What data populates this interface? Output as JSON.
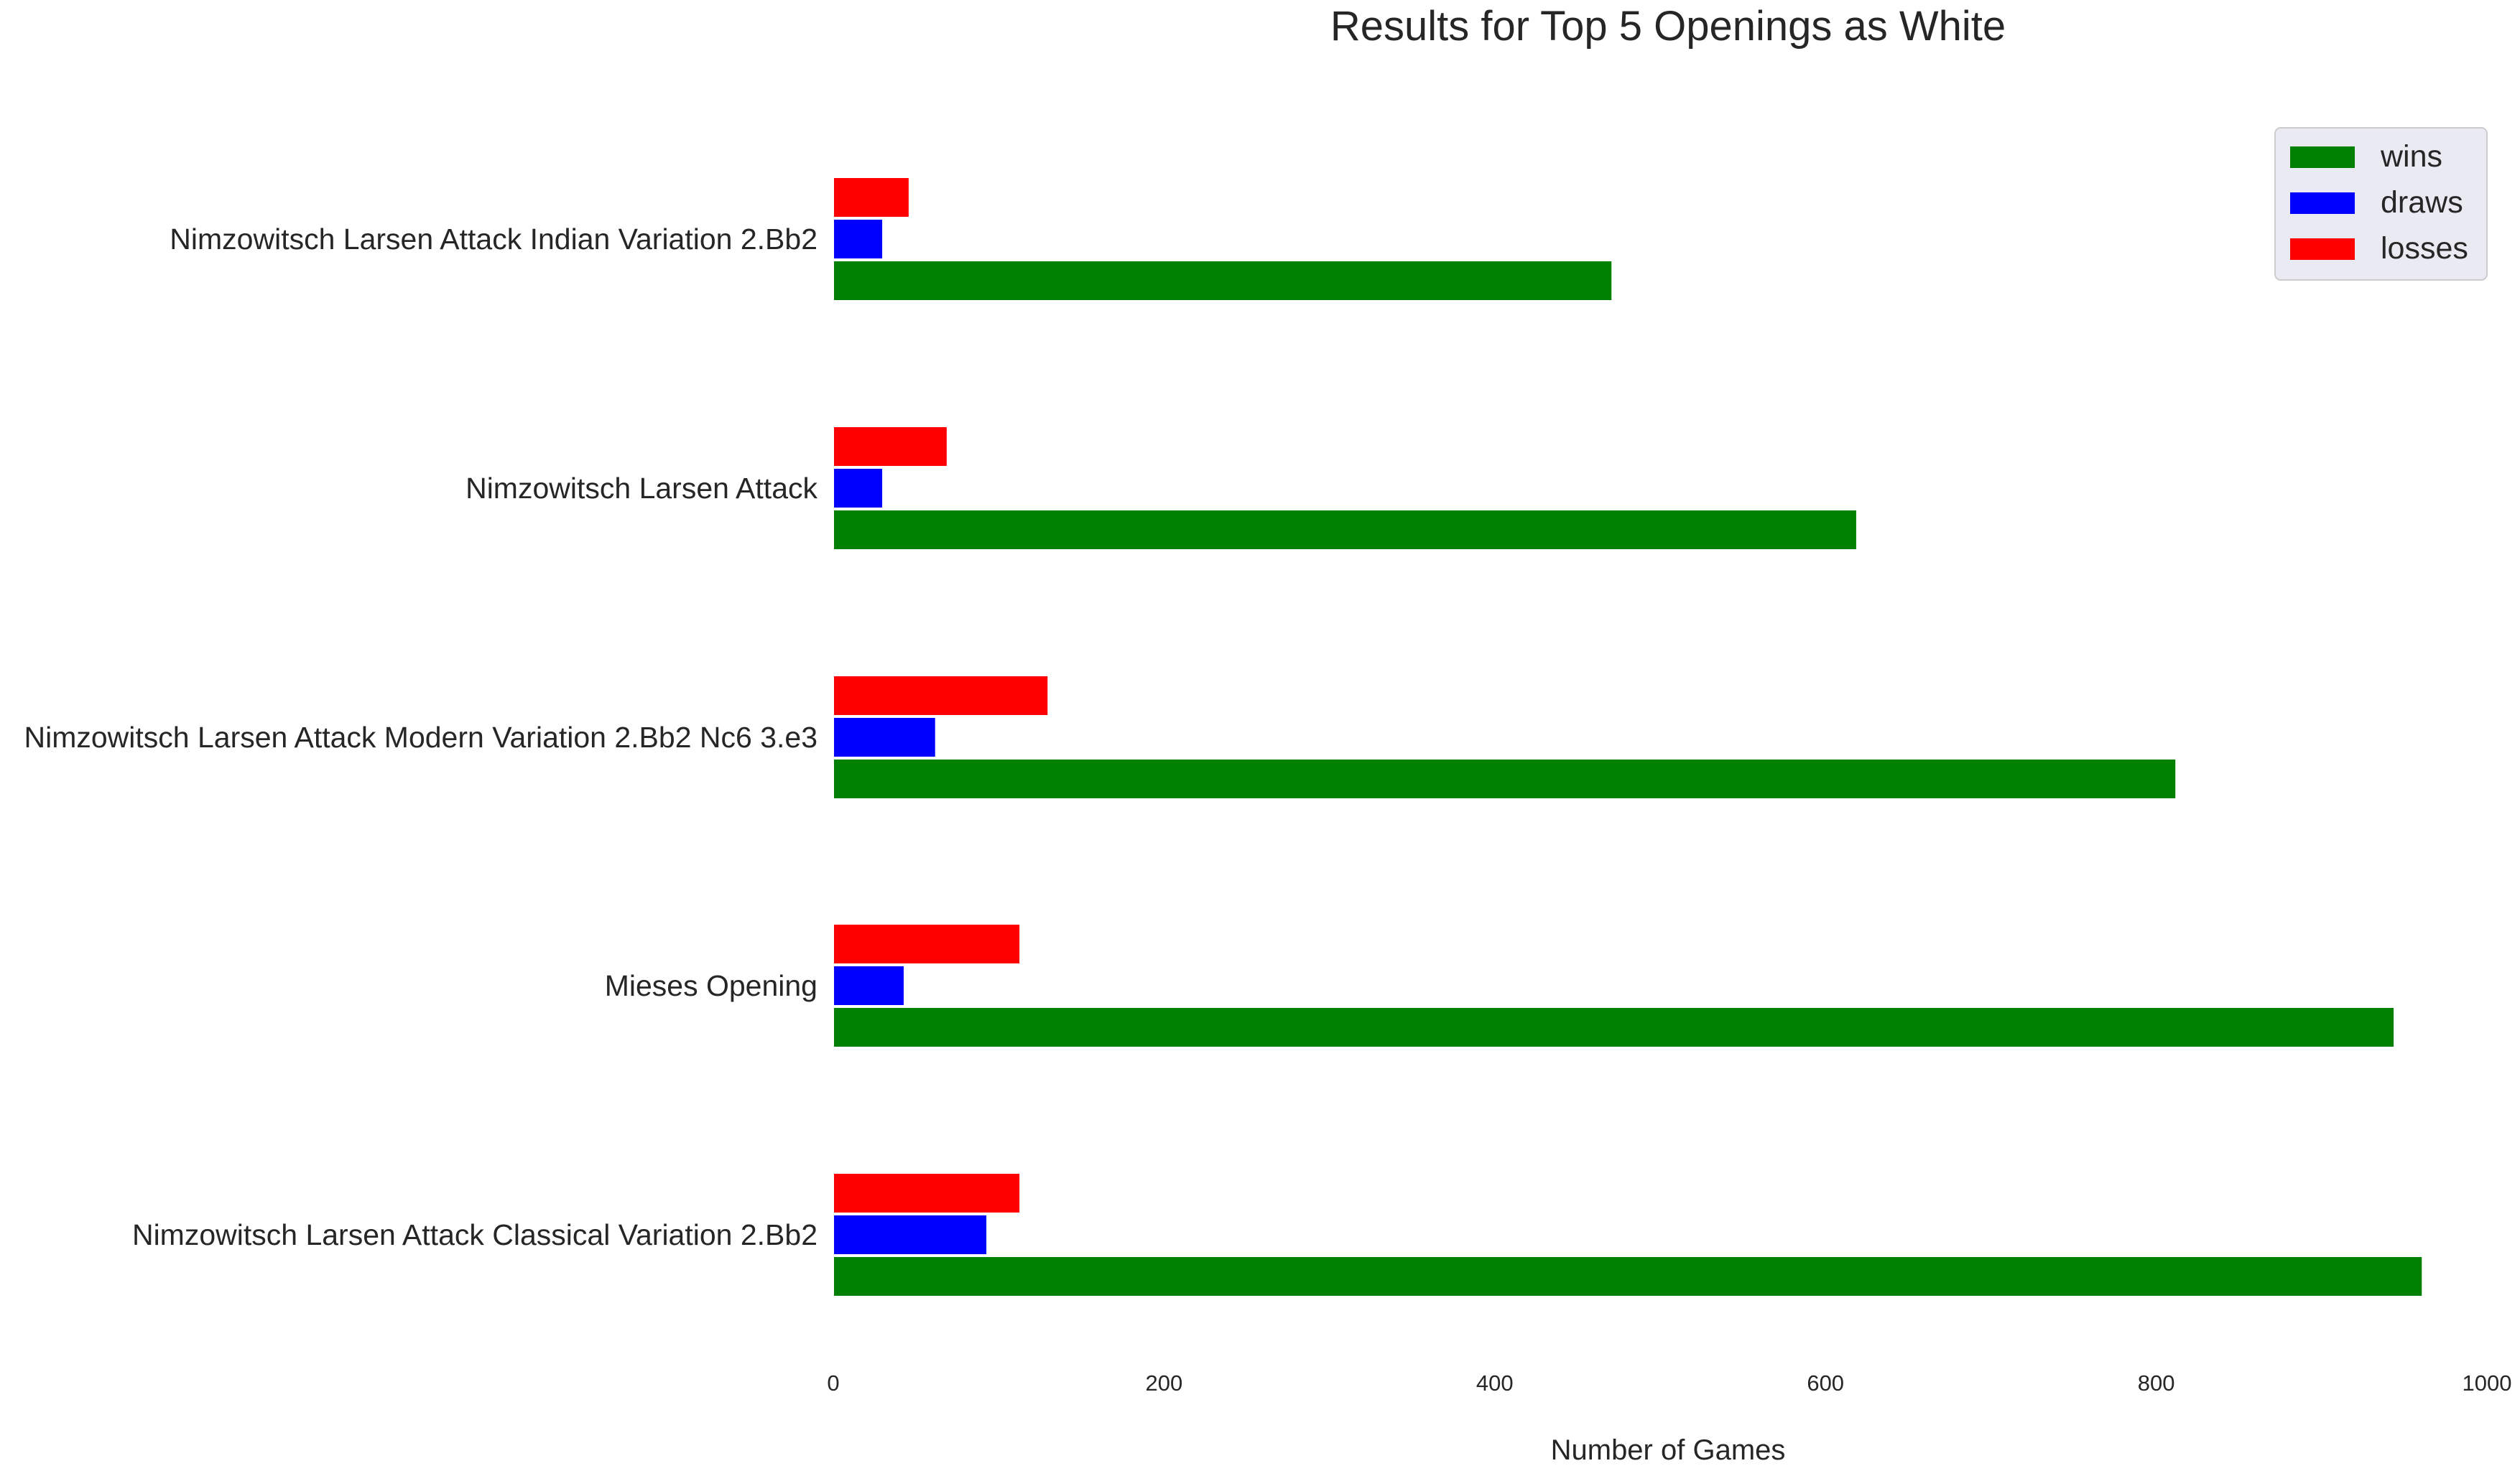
{
  "chart_data": {
    "type": "bar",
    "orientation": "horizontal",
    "title": "Results for Top 5 Openings as White",
    "xlabel": "Number of Games",
    "ylabel": "",
    "xlim": [
      0,
      1000
    ],
    "xticks": [
      0,
      200,
      400,
      600,
      800,
      1000
    ],
    "grid": false,
    "legend_position": "top-right",
    "categories": [
      "Nimzowitsch Larsen Attack Indian Variation 2.Bb2",
      "Nimzowitsch Larsen Attack",
      "Nimzowitsch Larsen Attack Modern Variation 2.Bb2 Nc6 3.e3",
      "Mieses Opening",
      "Nimzowitsch Larsen Attack Classical Variation 2.Bb2"
    ],
    "series": [
      {
        "name": "wins",
        "color": "#008000",
        "values": [
          471,
          619,
          812,
          944,
          961
        ]
      },
      {
        "name": "draws",
        "color": "#0000ff",
        "values": [
          30,
          30,
          62,
          43,
          93
        ]
      },
      {
        "name": "losses",
        "color": "#ff0000",
        "values": [
          46,
          69,
          130,
          113,
          113
        ]
      }
    ]
  }
}
